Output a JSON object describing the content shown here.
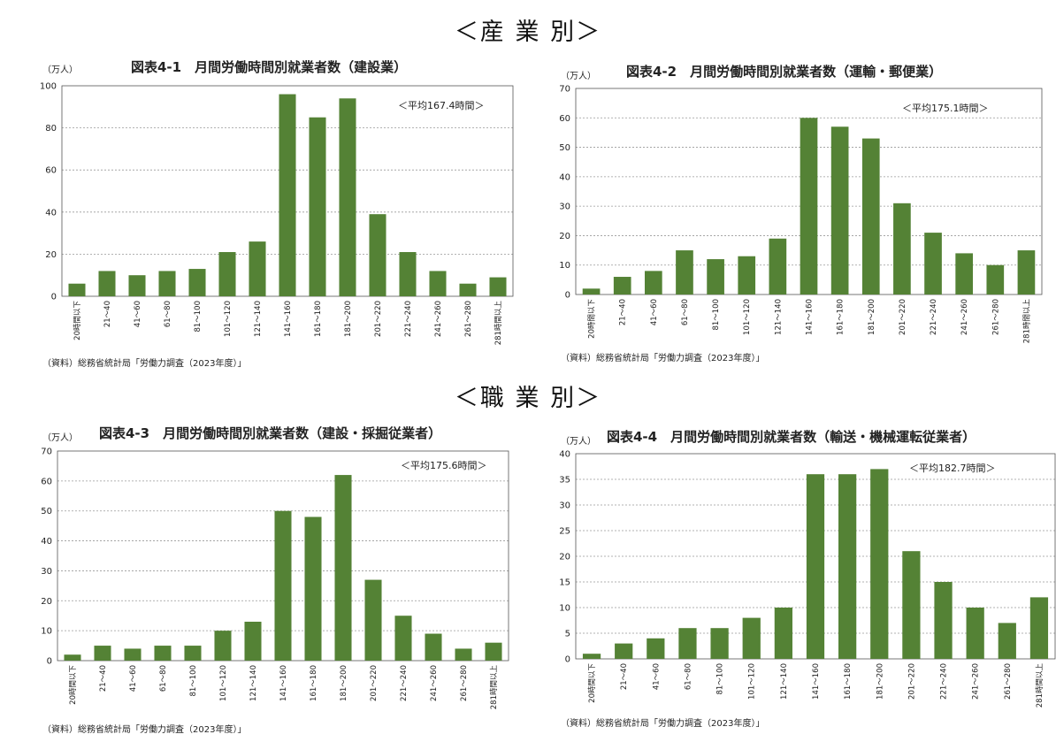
{
  "headings": {
    "industry": "＜産 業 別＞",
    "occupation": "＜職 業 別＞"
  },
  "colors": {
    "bar": "#548235",
    "grid": "#999999",
    "axis": "#555555"
  },
  "chart_data": [
    {
      "type": "bar",
      "title": "図表4-1　月間労働時間別就業者数（建設業）",
      "unit_label": "（万人）",
      "annotation": "＜平均167.4時間＞",
      "source": "（資料）総務省統計局「労働力調査（2023年度）」",
      "categories": [
        "20時間以下",
        "21～40",
        "41～60",
        "61～80",
        "81～100",
        "101～120",
        "121～140",
        "141～160",
        "161～180",
        "181～200",
        "201～220",
        "221～240",
        "241～260",
        "261～280",
        "281時間以上"
      ],
      "values": [
        6,
        12,
        10,
        12,
        13,
        21,
        26,
        96,
        85,
        94,
        39,
        21,
        12,
        6,
        9
      ],
      "ylim": [
        0,
        100
      ],
      "yticks": [
        0,
        20,
        40,
        60,
        80,
        100
      ],
      "grid": true
    },
    {
      "type": "bar",
      "title": "図表4-2　月間労働時間別就業者数（運輸・郵便業）",
      "unit_label": "（万人）",
      "annotation": "＜平均175.1時間＞",
      "source": "（資料）総務省統計局「労働力調査（2023年度）」",
      "categories": [
        "20時間以下",
        "21～40",
        "41～60",
        "61～80",
        "81～100",
        "101～120",
        "121～140",
        "141～160",
        "161～180",
        "181～200",
        "201～220",
        "221～240",
        "241～260",
        "261～280",
        "281時間以上"
      ],
      "values": [
        2,
        6,
        8,
        15,
        12,
        13,
        19,
        60,
        57,
        53,
        31,
        21,
        14,
        10,
        15
      ],
      "ylim": [
        0,
        70
      ],
      "yticks": [
        0,
        10,
        20,
        30,
        40,
        50,
        60,
        70
      ],
      "grid": true
    },
    {
      "type": "bar",
      "title": "図表4-3　月間労働時間別就業者数（建設・採掘従業者）",
      "unit_label": "（万人）",
      "annotation": "＜平均175.6時間＞",
      "source": "（資料）総務省統計局「労働力調査（2023年度）」",
      "categories": [
        "20時間以下",
        "21～40",
        "41～60",
        "61～80",
        "81～100",
        "101～120",
        "121～140",
        "141～160",
        "161～180",
        "181～200",
        "201～220",
        "221～240",
        "241～260",
        "261～280",
        "281時間以上"
      ],
      "values": [
        2,
        5,
        4,
        5,
        5,
        10,
        13,
        50,
        48,
        62,
        27,
        15,
        9,
        4,
        6
      ],
      "ylim": [
        0,
        70
      ],
      "yticks": [
        0,
        10,
        20,
        30,
        40,
        50,
        60,
        70
      ],
      "grid": true
    },
    {
      "type": "bar",
      "title": "図表4-4　月間労働時間別就業者数（輸送・機械運転従業者）",
      "unit_label": "（万人）",
      "annotation": "＜平均182.7時間＞",
      "source": "（資料）総務省統計局「労働力調査（2023年度）」",
      "categories": [
        "20時間以下",
        "21～40",
        "41～60",
        "61～80",
        "81～100",
        "101～120",
        "121～140",
        "141～160",
        "161～180",
        "181～200",
        "201～220",
        "221～240",
        "241～260",
        "261～280",
        "281時間以上"
      ],
      "values": [
        1,
        3,
        4,
        6,
        6,
        8,
        10,
        36,
        36,
        37,
        21,
        15,
        10,
        7,
        12
      ],
      "ylim": [
        0,
        40
      ],
      "yticks": [
        0,
        5,
        10,
        15,
        20,
        25,
        30,
        35,
        40
      ],
      "grid": true
    }
  ]
}
